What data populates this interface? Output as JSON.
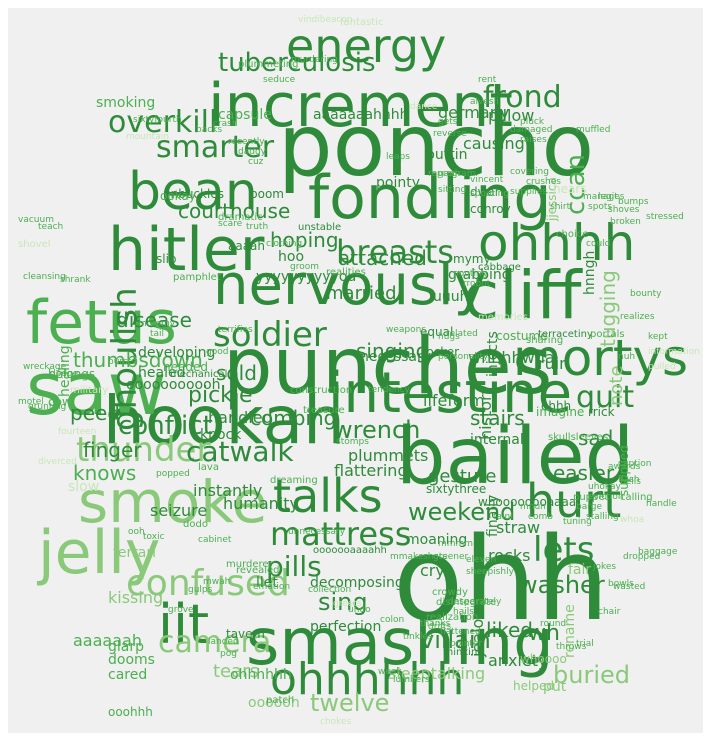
{
  "palette": {
    "background": "#f0f0f0",
    "dark_green": "#2e8b3a",
    "mid_green": "#4caf50",
    "light_green": "#8bc97a",
    "pale_green": "#c9e6b8"
  },
  "words": [
    {
      "text": "poncho",
      "weight": 100
    },
    {
      "text": "ohh",
      "weight": 98
    },
    {
      "text": "punches",
      "weight": 92
    },
    {
      "text": "bailed",
      "weight": 88
    },
    {
      "text": "hookah",
      "weight": 84
    },
    {
      "text": "saw",
      "weight": 84
    },
    {
      "text": "smashing",
      "weight": 80
    },
    {
      "text": "increment",
      "weight": 78
    },
    {
      "text": "fondling",
      "weight": 76
    },
    {
      "text": "cliff",
      "weight": 76
    },
    {
      "text": "hitler",
      "weight": 72
    },
    {
      "text": "fetus",
      "weight": 72
    },
    {
      "text": "intestine",
      "weight": 70
    },
    {
      "text": "nervously",
      "weight": 68
    },
    {
      "text": "smoke",
      "weight": 66
    },
    {
      "text": "jelly",
      "weight": 66
    },
    {
      "text": "mortys",
      "weight": 64
    },
    {
      "text": "ohhhh",
      "weight": 62
    },
    {
      "text": "talks",
      "weight": 58
    },
    {
      "text": "hurt",
      "weight": 56
    },
    {
      "text": "bean",
      "weight": 56
    },
    {
      "text": "energy",
      "weight": 54
    },
    {
      "text": "ohhhhhh",
      "weight": 54
    },
    {
      "text": "iit",
      "weight": 52
    },
    {
      "text": "ghoulish",
      "weight": 50
    },
    {
      "text": "soldier",
      "weight": 48
    },
    {
      "text": "confused",
      "weight": 46
    },
    {
      "text": "breasts",
      "weight": 44
    },
    {
      "text": "mattress",
      "weight": 42
    },
    {
      "text": "smarter",
      "weight": 40
    },
    {
      "text": "overkill",
      "weight": 40
    },
    {
      "text": "thunder",
      "weight": 40
    },
    {
      "text": "tuberculosis",
      "weight": 38
    },
    {
      "text": "catwalk",
      "weight": 38
    },
    {
      "text": "lets",
      "weight": 38
    },
    {
      "text": "frond",
      "weight": 36
    },
    {
      "text": "quit",
      "weight": 36
    },
    {
      "text": "camera",
      "weight": 36
    },
    {
      "text": "pills",
      "weight": 34
    },
    {
      "text": "weekend",
      "weight": 34
    },
    {
      "text": "conflict",
      "weight": 32
    },
    {
      "text": "wrench",
      "weight": 32
    },
    {
      "text": "twelve",
      "weight": 32
    },
    {
      "text": "ccan",
      "weight": 30
    },
    {
      "text": "villain",
      "weight": 30
    },
    {
      "text": "sing",
      "weight": 30
    },
    {
      "text": "buried",
      "weight": 28
    },
    {
      "text": "washer",
      "weight": 28
    },
    {
      "text": "hoping",
      "weight": 28
    },
    {
      "text": "sad",
      "weight": 26
    },
    {
      "text": "courthouse",
      "weight": 26
    },
    {
      "text": "finger",
      "weight": 26
    },
    {
      "text": "attached",
      "weight": 26
    },
    {
      "text": "singing",
      "weight": 24
    },
    {
      "text": "married",
      "weight": 24
    },
    {
      "text": "pickle",
      "weight": 24
    },
    {
      "text": "disease",
      "weight": 24
    },
    {
      "text": "thumbsdown",
      "weight": 22
    },
    {
      "text": "combing",
      "weight": 22
    },
    {
      "text": "stairs",
      "weight": 22
    },
    {
      "text": "knows",
      "weight": 22
    },
    {
      "text": "easier",
      "weight": 22
    },
    {
      "text": "gesture",
      "weight": 22
    },
    {
      "text": "liked",
      "weight": 22
    },
    {
      "text": "tugging",
      "weight": 22
    },
    {
      "text": "wh",
      "weight": 22
    },
    {
      "text": "sold",
      "weight": 20
    },
    {
      "text": "tears",
      "weight": 20
    },
    {
      "text": "peed",
      "weight": 20
    },
    {
      "text": "note",
      "weight": 20
    },
    {
      "text": "whhhhwha",
      "weight": 18
    },
    {
      "text": "germany",
      "weight": 18
    },
    {
      "text": "ohhhhhh",
      "weight": 18
    },
    {
      "text": "aaaaaah",
      "weight": 18
    },
    {
      "text": "kissing",
      "weight": 18
    },
    {
      "text": "humanity",
      "weight": 18
    },
    {
      "text": "handled",
      "weight": 18
    },
    {
      "text": "anxiety",
      "weight": 18
    },
    {
      "text": "yyyyyyyyyyou",
      "weight": 18
    },
    {
      "text": "grabbing",
      "weight": 16
    },
    {
      "text": "pillow",
      "weight": 16
    },
    {
      "text": "necessary",
      "weight": 16
    },
    {
      "text": "smoking",
      "weight": 16
    },
    {
      "text": "capsule",
      "weight": 16
    },
    {
      "text": "aaaaaaahhhh",
      "weight": 16
    },
    {
      "text": "causing",
      "weight": 16
    },
    {
      "text": "puttin",
      "weight": 16
    },
    {
      "text": "pointy",
      "weight": 16
    },
    {
      "text": "ruin",
      "weight": 16
    },
    {
      "text": "plummets",
      "weight": 16
    },
    {
      "text": "flattering",
      "weight": 16
    },
    {
      "text": "knock",
      "weight": 16
    },
    {
      "text": "instantly",
      "weight": 16
    },
    {
      "text": "seizure",
      "weight": 16
    },
    {
      "text": "decomposing",
      "weight": 16
    },
    {
      "text": "perfection",
      "weight": 16
    },
    {
      "text": "sleeptalking",
      "weight": 16
    },
    {
      "text": "lifeform",
      "weight": 16
    },
    {
      "text": "history",
      "weight": 16
    },
    {
      "text": "internal",
      "weight": 16
    },
    {
      "text": "straw",
      "weight": 16
    },
    {
      "text": "rocks",
      "weight": 16
    },
    {
      "text": "moaning",
      "weight": 16
    },
    {
      "text": "cry",
      "weight": 16
    },
    {
      "text": "rename",
      "weight": 16
    },
    {
      "text": "fair",
      "weight": 16
    },
    {
      "text": "jealous",
      "weight": 16
    },
    {
      "text": "put",
      "weight": 16
    },
    {
      "text": "glarp",
      "weight": 14
    },
    {
      "text": "cared",
      "weight": 14
    },
    {
      "text": "dooms",
      "weight": 14
    },
    {
      "text": "ferrari",
      "weight": 14
    },
    {
      "text": "ooooooooooh",
      "weight": 14
    },
    {
      "text": "injects",
      "weight": 14
    },
    {
      "text": "finally",
      "weight": 14
    },
    {
      "text": "uuuh",
      "weight": 14
    },
    {
      "text": "hoo",
      "weight": 14
    },
    {
      "text": "developing",
      "weight": 14
    },
    {
      "text": "healing",
      "weight": 14
    },
    {
      "text": "slow",
      "weight": 14
    },
    {
      "text": "healed",
      "weight": 14
    },
    {
      "text": "ooohhh",
      "weight": 14
    },
    {
      "text": "oooooh",
      "weight": 14
    },
    {
      "text": "llet",
      "weight": 14
    },
    {
      "text": "sixtythree",
      "weight": 12
    },
    {
      "text": "jjessica",
      "weight": 12
    },
    {
      "text": "hears",
      "weight": 12
    },
    {
      "text": "belongs",
      "weight": 12
    },
    {
      "text": "needed",
      "weight": 12
    },
    {
      "text": "unbuckles",
      "weight": 12
    },
    {
      "text": "dramatic",
      "weight": 12
    },
    {
      "text": "aaaah",
      "weight": 12
    },
    {
      "text": "hnngh",
      "weight": 12
    },
    {
      "text": "whoooooooaaaa",
      "weight": 12
    },
    {
      "text": "equal",
      "weight": 12
    },
    {
      "text": "locker",
      "weight": 12
    },
    {
      "text": "tavern",
      "weight": 12
    },
    {
      "text": "cow",
      "weight": 12
    },
    {
      "text": "shovel",
      "weight": 12
    },
    {
      "text": "helped",
      "weight": 12
    },
    {
      "text": "whoooo",
      "weight": 12
    },
    {
      "text": "fantastic",
      "weight": 10
    },
    {
      "text": "plummeting",
      "weight": 10
    },
    {
      "text": "seduce",
      "weight": 10
    },
    {
      "text": "murdering",
      "weight": 10
    },
    {
      "text": "vindibeacon",
      "weight": 10
    },
    {
      "text": "mymy",
      "weight": 10
    },
    {
      "text": "costume",
      "weight": 10
    },
    {
      "text": "slip",
      "weight": 10
    },
    {
      "text": "boom",
      "weight": 10
    },
    {
      "text": "ookay",
      "weight": 10
    },
    {
      "text": "conroy",
      "weight": 10
    },
    {
      "text": "dwarf",
      "weight": 10
    },
    {
      "text": "ohhh",
      "weight": 10
    },
    {
      "text": "imagine",
      "weight": 10
    },
    {
      "text": "rrick",
      "weight": 10
    },
    {
      "text": "supplied",
      "weight": 10
    },
    {
      "text": "skullsleeves",
      "weight": 10
    },
    {
      "text": "mechanical",
      "weight": 10
    },
    {
      "text": "construction",
      "weight": 10
    },
    {
      "text": "military",
      "weight": 10
    },
    {
      "text": "realities",
      "weight": 10
    },
    {
      "text": "unstable",
      "weight": 10
    },
    {
      "text": "cabbage",
      "weight": 10
    },
    {
      "text": "memories",
      "weight": 10
    },
    {
      "text": "terracetiny",
      "weight": 10
    },
    {
      "text": "portals",
      "weight": 10
    },
    {
      "text": "ooooooaaaahh",
      "weight": 10
    },
    {
      "text": "murderer",
      "weight": 10
    },
    {
      "text": "revealed",
      "weight": 10
    },
    {
      "text": "crowdy",
      "weight": 10
    },
    {
      "text": "disintegrate",
      "weight": 10
    },
    {
      "text": "thinking",
      "weight": 10
    },
    {
      "text": "patch",
      "weight": 10
    },
    {
      "text": "chokes",
      "weight": 10
    },
    {
      "text": "dodo",
      "weight": 10
    },
    {
      "text": "realization",
      "weight": 10
    },
    {
      "text": "sharing",
      "weight": 10
    },
    {
      "text": "choice",
      "weight": 10
    },
    {
      "text": "calling",
      "weight": 10
    },
    {
      "text": "puppet",
      "weight": 10
    },
    {
      "text": "dreaming",
      "weight": 10
    },
    {
      "text": "treasure",
      "weight": 10
    },
    {
      "text": "collection",
      "weight": 10
    },
    {
      "text": "greets",
      "weight": 10
    },
    {
      "text": "pamphlet",
      "weight": 10
    },
    {
      "text": "crash",
      "weight": 10
    },
    {
      "text": "mountain",
      "weight": 10
    },
    {
      "text": "sixtyfourth",
      "weight": 10
    },
    {
      "text": "backs",
      "weight": 10
    },
    {
      "text": "reprogram",
      "weight": 10
    },
    {
      "text": "dance",
      "weight": 10
    },
    {
      "text": "rent",
      "weight": 10
    },
    {
      "text": "stomps",
      "weight": 10
    },
    {
      "text": "unnecessary",
      "weight": 10
    },
    {
      "text": "popped",
      "weight": 10
    },
    {
      "text": "lava",
      "weight": 10
    },
    {
      "text": "terrifies",
      "weight": 10
    },
    {
      "text": "tail",
      "weight": 10
    },
    {
      "text": "good",
      "weight": 10
    },
    {
      "text": "scare",
      "weight": 10
    },
    {
      "text": "truth",
      "weight": 10
    },
    {
      "text": "clothing",
      "weight": 10
    },
    {
      "text": "groom",
      "weight": 10
    },
    {
      "text": "personality",
      "weight": 10
    },
    {
      "text": "related",
      "weight": 10
    },
    {
      "text": "tendency",
      "weight": 10
    },
    {
      "text": "fourteen",
      "weight": 10
    },
    {
      "text": "grunting",
      "weight": 10
    },
    {
      "text": "diverced",
      "weight": 10
    },
    {
      "text": "bumps",
      "weight": 10
    },
    {
      "text": "kept",
      "weight": 10
    },
    {
      "text": "information",
      "weight": 10
    },
    {
      "text": "pulled",
      "weight": 10
    },
    {
      "text": "flash",
      "weight": 10
    },
    {
      "text": "whoa",
      "weight": 10
    },
    {
      "text": "stressed",
      "weight": 10
    },
    {
      "text": "broken",
      "weight": 10
    },
    {
      "text": "realizes",
      "weight": 10
    },
    {
      "text": "bounty",
      "weight": 10
    },
    {
      "text": "raises",
      "weight": 10
    },
    {
      "text": "covering",
      "weight": 10
    },
    {
      "text": "supplies",
      "weight": 10
    },
    {
      "text": "pluck",
      "weight": 10
    },
    {
      "text": "damaged",
      "weight": 10
    },
    {
      "text": "muffled",
      "weight": 10
    },
    {
      "text": "leaps",
      "weight": 10
    },
    {
      "text": "crushes",
      "weight": 10
    },
    {
      "text": "vincent",
      "weight": 10
    },
    {
      "text": "gaah",
      "weight": 10
    },
    {
      "text": "could",
      "weight": 10
    },
    {
      "text": "handle",
      "weight": 10
    },
    {
      "text": "dropped",
      "weight": 10
    },
    {
      "text": "wreckage",
      "weight": 10
    },
    {
      "text": "cleansing",
      "weight": 10
    },
    {
      "text": "dodge",
      "weight": 10
    },
    {
      "text": "motel",
      "weight": 10
    },
    {
      "text": "bursts",
      "weight": 10
    },
    {
      "text": "mommy",
      "weight": 10
    },
    {
      "text": "vacuum",
      "weight": 10
    },
    {
      "text": "shrank",
      "weight": 10
    },
    {
      "text": "weapons",
      "weight": 10
    },
    {
      "text": "hugs",
      "weight": 10
    },
    {
      "text": "pointer",
      "weight": 10
    },
    {
      "text": "colon",
      "weight": 10
    },
    {
      "text": "throws",
      "weight": 10
    },
    {
      "text": "trial",
      "weight": 10
    },
    {
      "text": "round",
      "weight": 10
    },
    {
      "text": "hails",
      "weight": 10
    },
    {
      "text": "weak",
      "weight": 10
    },
    {
      "text": "lumbers",
      "weight": 10
    },
    {
      "text": "landed",
      "weight": 10
    },
    {
      "text": "pog",
      "weight": 10
    },
    {
      "text": "mwah",
      "weight": 10
    },
    {
      "text": "gulps",
      "weight": 10
    },
    {
      "text": "grove",
      "weight": 10
    },
    {
      "text": "emotion",
      "weight": 10
    },
    {
      "text": "undo",
      "weight": 10
    },
    {
      "text": "mmake",
      "weight": 10
    },
    {
      "text": "shots",
      "weight": 10
    },
    {
      "text": "thanks",
      "weight": 10
    },
    {
      "text": "tinkles",
      "weight": 10
    },
    {
      "text": "drifts",
      "weight": 10
    },
    {
      "text": "flattened",
      "weight": 10
    },
    {
      "text": "comb",
      "weight": 10
    },
    {
      "text": "tuning",
      "weight": 10
    },
    {
      "text": "baggage",
      "weight": 10
    },
    {
      "text": "awards",
      "weight": 10
    },
    {
      "text": "caption",
      "weight": 10
    },
    {
      "text": "bells",
      "weight": 10
    },
    {
      "text": "cabinet",
      "weight": 10
    },
    {
      "text": "stalling",
      "weight": 10
    },
    {
      "text": "barge",
      "weight": 10
    },
    {
      "text": "eviction",
      "weight": 10
    },
    {
      "text": "uhokay",
      "weight": 10
    },
    {
      "text": "sheepishly",
      "weight": 10
    },
    {
      "text": "eleven",
      "weight": 10
    },
    {
      "text": "mmmm",
      "weight": 10
    },
    {
      "text": "greener",
      "weight": 10
    },
    {
      "text": "desperately",
      "weight": 10
    },
    {
      "text": "ooh",
      "weight": 10
    },
    {
      "text": "toxic",
      "weight": 10
    },
    {
      "text": "chair",
      "weight": 10
    },
    {
      "text": "jokes",
      "weight": 10
    },
    {
      "text": "taint",
      "weight": 10
    },
    {
      "text": "mnuh",
      "weight": 10
    },
    {
      "text": "bowls",
      "weight": 10
    },
    {
      "text": "wasted",
      "weight": 10
    },
    {
      "text": "nuh",
      "weight": 10
    },
    {
      "text": "pouting",
      "weight": 10
    },
    {
      "text": "rrobot",
      "weight": 10
    },
    {
      "text": "gets",
      "weight": 10
    },
    {
      "text": "spouting",
      "weight": 10
    },
    {
      "text": "sitting",
      "weight": 10
    },
    {
      "text": "legit",
      "weight": 10
    },
    {
      "text": "manages",
      "weight": 10
    },
    {
      "text": "spots",
      "weight": 10
    },
    {
      "text": "shirt",
      "weight": 10
    },
    {
      "text": "shoves",
      "weight": 10
    },
    {
      "text": "alvesli",
      "weight": 10
    },
    {
      "text": "reverse",
      "weight": 10
    },
    {
      "text": "teach",
      "weight": 10
    },
    {
      "text": "recently",
      "weight": 10
    },
    {
      "text": "daddy",
      "weight": 10
    },
    {
      "text": "cuz",
      "weight": 10
    }
  ]
}
